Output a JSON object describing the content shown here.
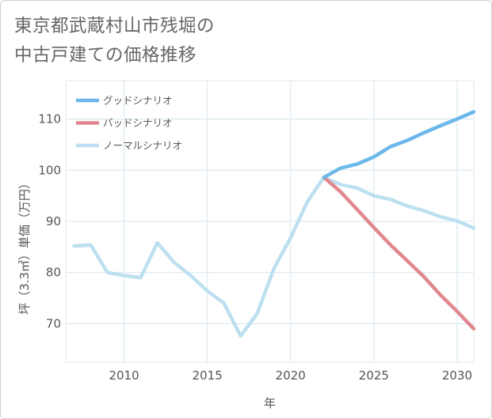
{
  "page": {
    "title_line1": "東京都武蔵村山市残堀の",
    "title_line2": "中古戸建ての価格推移"
  },
  "chart_data": {
    "type": "line",
    "title": "東京都武蔵村山市残堀の中古戸建ての価格推移",
    "xlabel": "年",
    "ylabel": "坪（3.3㎡）単価（万円）",
    "xlim": [
      2006.5,
      2031
    ],
    "ylim": [
      62.5,
      117.5
    ],
    "x_ticks": [
      2010,
      2015,
      2020,
      2025,
      2030
    ],
    "y_ticks": [
      70,
      80,
      90,
      100,
      110
    ],
    "grid": true,
    "legend_position": "top-left",
    "series": [
      {
        "name": "グッドシナリオ",
        "color": "#6cb8ea",
        "x": [
          2022,
          2023,
          2024,
          2025,
          2026,
          2027,
          2028,
          2029,
          2030,
          2031
        ],
        "y": [
          98.6,
          100.4,
          101.2,
          102.6,
          104.6,
          105.8,
          107.3,
          108.7,
          110.0,
          111.4
        ]
      },
      {
        "name": "バッドシナリオ",
        "color": "#e0878f",
        "x": [
          2022,
          2023,
          2024,
          2025,
          2026,
          2027,
          2028,
          2029,
          2030,
          2031
        ],
        "y": [
          98.6,
          95.8,
          92.3,
          88.8,
          85.4,
          82.3,
          79.2,
          75.6,
          72.4,
          69.0
        ]
      },
      {
        "name": "ノーマルシナリオ",
        "color": "#bde0f0",
        "x": [
          2007,
          2008,
          2009,
          2010,
          2011,
          2012,
          2013,
          2014,
          2015,
          2016,
          2017,
          2018,
          2019,
          2020,
          2021,
          2022,
          2023,
          2024,
          2025,
          2026,
          2027,
          2028,
          2029,
          2030,
          2031
        ],
        "y": [
          85.2,
          85.4,
          80.0,
          79.4,
          79.0,
          85.8,
          82.0,
          79.4,
          76.4,
          74.0,
          67.6,
          72.0,
          80.8,
          86.8,
          93.8,
          98.6,
          97.2,
          96.5,
          95.0,
          94.3,
          93.0,
          92.1,
          90.9,
          90.1,
          88.7
        ]
      }
    ]
  }
}
